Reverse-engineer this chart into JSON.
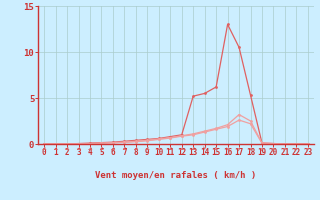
{
  "background_color": "#cceeff",
  "line_color_main": "#e06060",
  "line_color_light": "#f0a0a0",
  "grid_color": "#aacccc",
  "axis_color": "#cc3333",
  "xlabel": "Vent moyen/en rafales ( km/h )",
  "xlim": [
    -0.5,
    23.5
  ],
  "ylim": [
    0,
    15
  ],
  "yticks": [
    0,
    5,
    10,
    15
  ],
  "xticks": [
    0,
    1,
    2,
    3,
    4,
    5,
    6,
    7,
    8,
    9,
    10,
    11,
    12,
    13,
    14,
    15,
    16,
    17,
    18,
    19,
    20,
    21,
    22,
    23
  ],
  "x": [
    0,
    1,
    2,
    3,
    4,
    5,
    6,
    7,
    8,
    9,
    10,
    11,
    12,
    13,
    14,
    15,
    16,
    17,
    18,
    19,
    20,
    21,
    22,
    23
  ],
  "y_rafales": [
    0,
    0,
    0,
    0.05,
    0.1,
    0.15,
    0.2,
    0.3,
    0.4,
    0.5,
    0.6,
    0.8,
    1.0,
    5.2,
    5.5,
    6.2,
    13.0,
    10.5,
    5.3,
    0.1,
    0.05,
    0,
    0,
    0
  ],
  "y_moyen1": [
    0,
    0,
    0,
    0.02,
    0.05,
    0.1,
    0.15,
    0.2,
    0.3,
    0.4,
    0.55,
    0.7,
    0.9,
    1.1,
    1.4,
    1.7,
    2.1,
    3.2,
    2.5,
    0.1,
    0.05,
    0,
    0,
    0
  ],
  "y_moyen2": [
    0,
    0,
    0,
    0.02,
    0.04,
    0.08,
    0.12,
    0.18,
    0.25,
    0.35,
    0.5,
    0.65,
    0.85,
    1.0,
    1.3,
    1.6,
    1.9,
    2.6,
    2.2,
    0.08,
    0.04,
    0,
    0,
    0
  ],
  "arrow_angles_deg": [
    220,
    220,
    220,
    220,
    220,
    220,
    220,
    220,
    220,
    220,
    220,
    220,
    220,
    220,
    270,
    315,
    0,
    45,
    45,
    45,
    45,
    45,
    45,
    45
  ]
}
